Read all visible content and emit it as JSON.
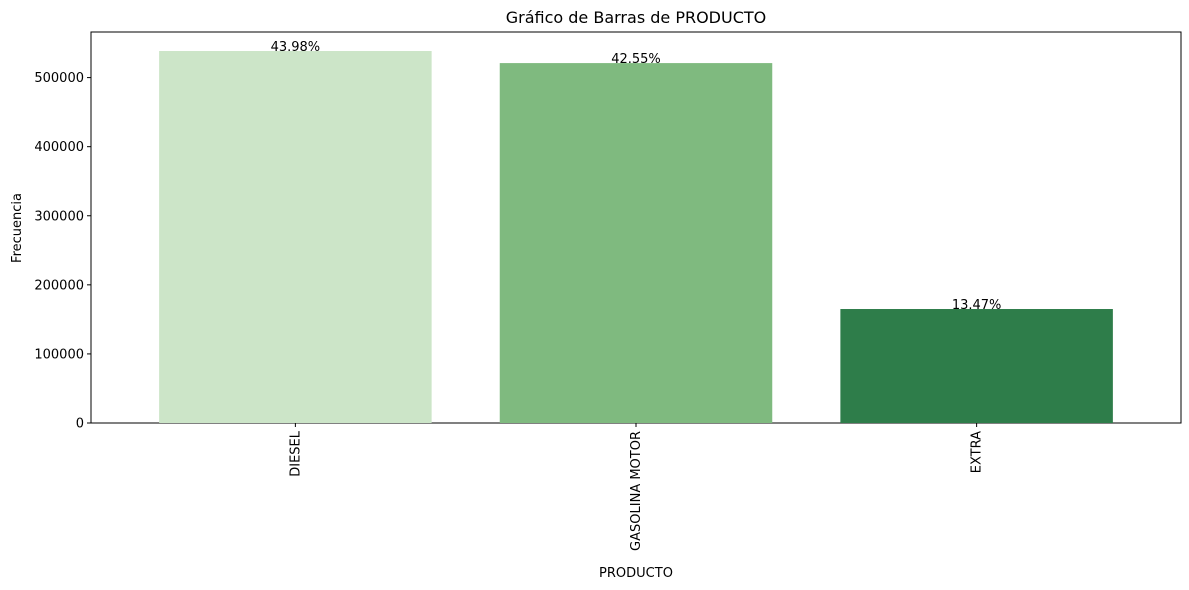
{
  "chart_data": {
    "type": "bar",
    "title": "Gráfico de Barras de PRODUCTO",
    "xlabel": "PRODUCTO",
    "ylabel": "Frecuencia",
    "categories": [
      "DIESEL",
      "GASOLINA MOTOR",
      "EXTRA"
    ],
    "values": [
      538500,
      521000,
      165000
    ],
    "data_labels": [
      "43.98%",
      "42.55%",
      "13.47%"
    ],
    "colors": [
      "#cce5c8",
      "#7fba7f",
      "#2e7d4a"
    ],
    "ylim": [
      0,
      566000
    ],
    "yticks": [
      0,
      100000,
      200000,
      300000,
      400000,
      500000
    ],
    "ytick_labels": [
      "0",
      "100000",
      "200000",
      "300000",
      "400000",
      "500000"
    ],
    "xtick_rotation": "vertical",
    "grid": false,
    "legend": "none"
  }
}
